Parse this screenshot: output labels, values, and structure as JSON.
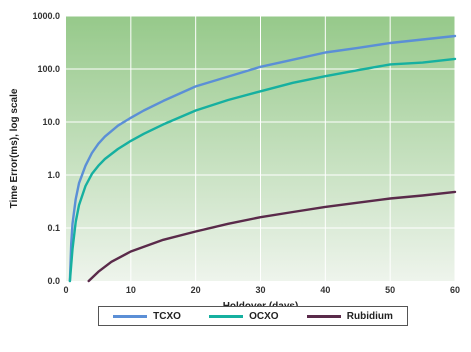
{
  "chart_data": {
    "type": "line",
    "title": "",
    "xlabel": "Holdover (days)",
    "ylabel": "Time Error(ms), log scale",
    "xlim": [
      0,
      60
    ],
    "ylim": [
      0.01,
      1000
    ],
    "yscale": "log",
    "x_ticks": [
      0,
      10,
      20,
      30,
      40,
      50,
      60
    ],
    "x_tick_labels": [
      "0",
      "10",
      "20",
      "30",
      "40",
      "50",
      "60"
    ],
    "y_ticks": [
      0.01,
      0.1,
      1,
      10,
      100,
      1000
    ],
    "y_tick_labels": [
      "0.0",
      "0.1",
      "1.0",
      "10.0",
      "100.0",
      "1000.0"
    ],
    "grid": true,
    "legend_position": "bottom",
    "background_gradient": [
      "#96c98a",
      "#eef4ec"
    ],
    "series": [
      {
        "name": "TCXO",
        "color": "#5b8fd6",
        "x": [
          0.6,
          0.8,
          1,
          1.5,
          2,
          3,
          4,
          5,
          6,
          8,
          10,
          12,
          15,
          20,
          25,
          30,
          35,
          40,
          45,
          50,
          55,
          60
        ],
        "y": [
          0.01,
          0.05,
          0.12,
          0.35,
          0.7,
          1.5,
          2.6,
          3.9,
          5.3,
          8.5,
          12,
          16.5,
          25,
          47,
          72,
          110,
          150,
          205,
          250,
          310,
          360,
          420
        ]
      },
      {
        "name": "OCXO",
        "color": "#16b0a0",
        "x": [
          0.6,
          0.8,
          1,
          1.5,
          2,
          3,
          4,
          5,
          6,
          8,
          10,
          12,
          15,
          20,
          25,
          30,
          35,
          40,
          45,
          50,
          55,
          60
        ],
        "y": [
          0.01,
          0.02,
          0.04,
          0.13,
          0.27,
          0.62,
          1.05,
          1.5,
          2,
          3.1,
          4.4,
          6,
          9,
          16.5,
          26,
          38,
          55,
          73,
          95,
          122,
          132,
          155
        ]
      },
      {
        "name": "Rubidium",
        "color": "#5a2a4a",
        "x": [
          3.5,
          5,
          7,
          10,
          15,
          20,
          25,
          30,
          35,
          40,
          45,
          50,
          55,
          60
        ],
        "y": [
          0.01,
          0.015,
          0.023,
          0.036,
          0.06,
          0.086,
          0.12,
          0.16,
          0.2,
          0.25,
          0.3,
          0.36,
          0.41,
          0.48
        ]
      }
    ]
  }
}
